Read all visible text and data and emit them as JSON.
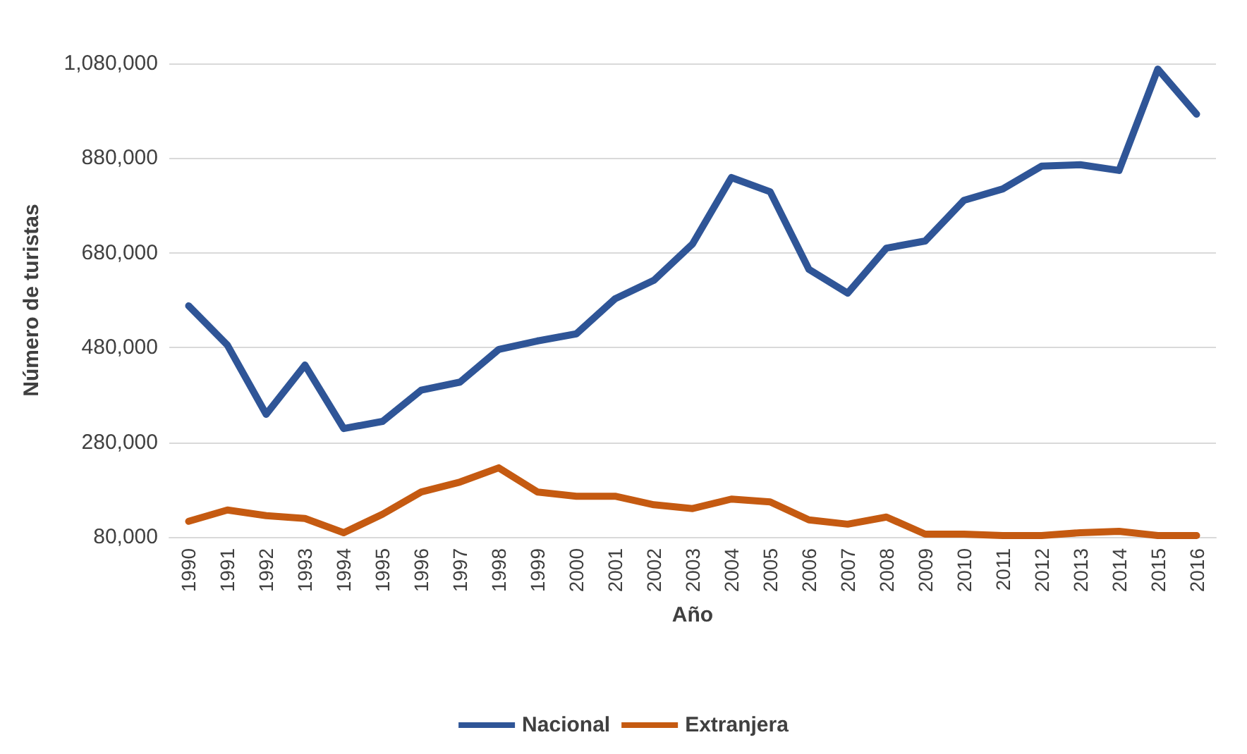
{
  "chart_data": {
    "type": "line",
    "xlabel": "Año",
    "ylabel": "Número de turistas",
    "categories": [
      "1990",
      "1991",
      "1992",
      "1993",
      "1994",
      "1995",
      "1996",
      "1997",
      "1998",
      "1999",
      "2000",
      "2001",
      "2002",
      "2003",
      "2004",
      "2005",
      "2006",
      "2007",
      "2008",
      "2009",
      "2010",
      "2011",
      "2012",
      "2013",
      "2014",
      "2015",
      "2016"
    ],
    "series": [
      {
        "name": "Nacional",
        "color": "#2f5597",
        "values": [
          568000,
          485000,
          339000,
          443000,
          309000,
          324000,
          390000,
          407000,
          476000,
          494000,
          509000,
          583000,
          622000,
          699000,
          839000,
          809000,
          645000,
          595000,
          690000,
          705000,
          791000,
          815000,
          863000,
          866000,
          854000,
          1068000,
          973000
        ]
      },
      {
        "name": "Extranjera",
        "color": "#c55a11",
        "values": [
          113000,
          137000,
          125000,
          119000,
          89000,
          128000,
          175000,
          196000,
          226000,
          175000,
          166000,
          166000,
          148000,
          140000,
          160000,
          154000,
          116000,
          107000,
          122000,
          86000,
          86000,
          83000,
          83000,
          89000,
          92000,
          83000,
          83000
        ]
      }
    ],
    "ylim": [
      80000,
      1080000
    ],
    "yticks": [
      {
        "value": 80000,
        "label": "80,000"
      },
      {
        "value": 280000,
        "label": "280,000"
      },
      {
        "value": 480000,
        "label": "480,000"
      },
      {
        "value": 680000,
        "label": "680,000"
      },
      {
        "value": 880000,
        "label": "880,000"
      },
      {
        "value": 1080000,
        "label": "1,080,000"
      }
    ],
    "grid": "y",
    "legend": "bottom",
    "marker": "none",
    "line_style": "solid"
  }
}
